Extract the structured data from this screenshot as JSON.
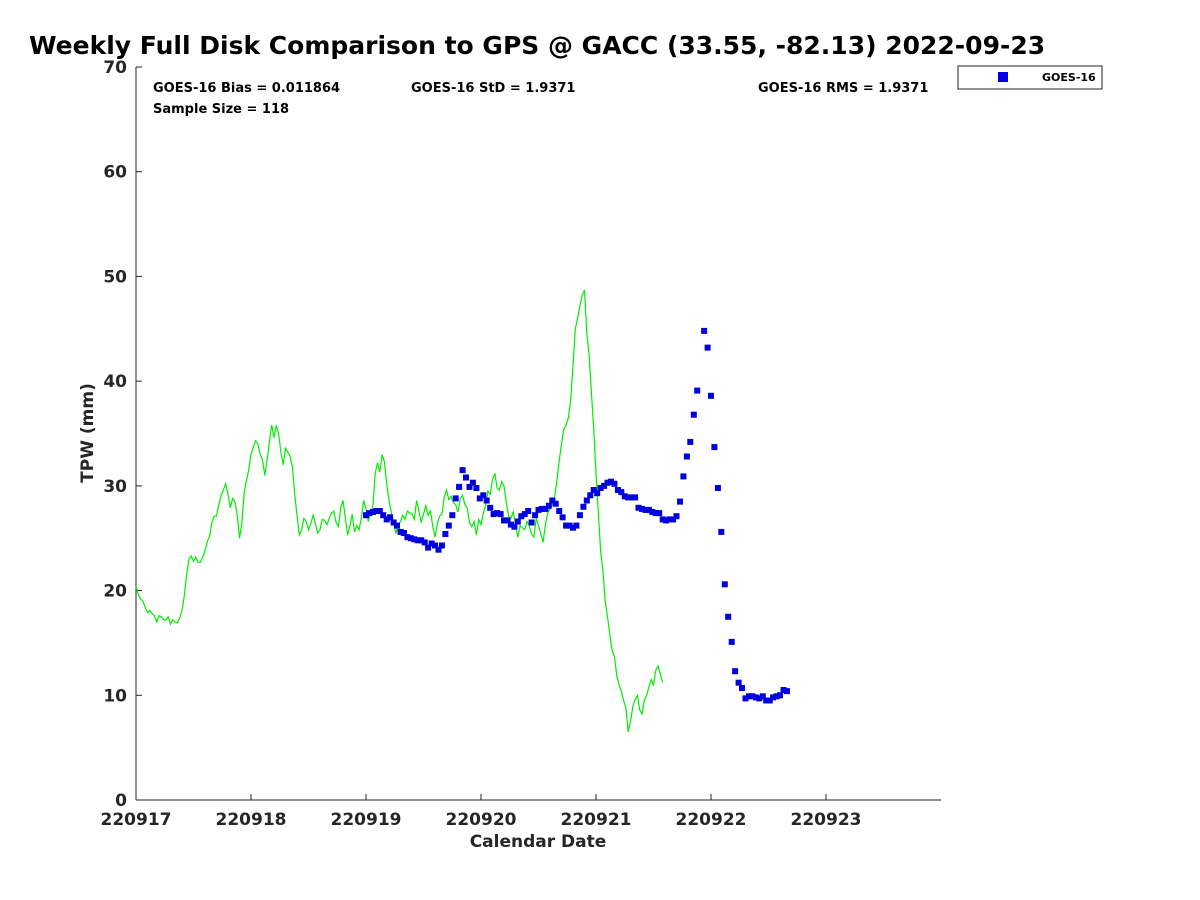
{
  "chart_data": {
    "type": "scatter",
    "title": "Weekly Full Disk Comparison to GPS @ GACC (33.55, -82.13) 2022-09-23",
    "xlabel": "Calendar Date",
    "ylabel": "TPW (mm)",
    "xlim": [
      220917.0,
      220924.0
    ],
    "ylim": [
      0,
      70
    ],
    "y_ticks": [
      "0",
      "10",
      "20",
      "30",
      "40",
      "50",
      "60",
      "70"
    ],
    "x_ticks": [
      {
        "value": 220917,
        "label": "220917"
      },
      {
        "value": 220918,
        "label": "220918"
      },
      {
        "value": 220919,
        "label": "220919"
      },
      {
        "value": 220920,
        "label": "220920"
      },
      {
        "value": 220921,
        "label": "220921"
      },
      {
        "value": 220922,
        "label": "220922"
      },
      {
        "value": 220923,
        "label": "220923"
      }
    ],
    "grid": false,
    "legend_position": "top-right",
    "stats": {
      "bias": "GOES-16 Bias = 0.011864",
      "std": "GOES-16 StD = 1.9371",
      "rms": "GOES-16 RMS = 1.9371",
      "sample": "Sample Size = 118"
    },
    "series": [
      {
        "name": "GOES-16",
        "style": "square-markers",
        "color": "#0000e0",
        "x_start": 220919.0,
        "x_step": 0.03,
        "values": [
          27.2,
          27.4,
          27.5,
          27.6,
          27.6,
          27.2,
          26.8,
          27.0,
          26.5,
          26.2,
          25.6,
          25.5,
          25.1,
          25.0,
          24.9,
          24.8,
          24.8,
          24.6,
          24.1,
          24.5,
          24.3,
          23.9,
          24.3,
          25.4,
          26.2,
          27.2,
          28.8,
          29.9,
          31.5,
          30.8,
          29.9,
          30.3,
          29.8,
          28.8,
          29.1,
          28.6,
          27.9,
          27.3,
          27.4,
          27.3,
          26.7,
          26.7,
          26.3,
          26.1,
          26.6,
          27.1,
          27.3,
          27.6,
          26.5,
          27.2,
          27.7,
          27.8,
          27.8,
          28.1,
          28.6,
          28.3,
          27.6,
          27.0,
          26.2,
          26.2,
          26.0,
          26.2,
          27.2,
          28.0,
          28.6,
          29.1,
          29.6,
          29.3,
          29.8,
          30.0,
          30.3,
          30.4,
          30.2,
          29.6,
          29.4,
          29.0,
          28.9,
          28.9,
          28.9,
          27.9,
          27.8,
          27.7,
          27.7,
          27.5,
          27.4,
          27.4,
          26.8,
          26.7,
          26.8,
          26.8,
          27.1,
          28.5,
          30.9,
          32.8,
          34.2,
          36.8,
          39.1,
          null,
          44.8,
          43.2,
          38.6,
          33.7,
          29.8,
          25.6,
          20.6,
          17.5,
          15.1,
          12.3,
          11.2,
          10.7,
          9.7,
          9.9,
          9.9,
          9.8,
          9.7,
          9.9,
          9.5,
          9.5,
          9.8,
          9.9,
          10.0,
          10.5,
          10.4
        ]
      },
      {
        "name": "GPS",
        "style": "line",
        "color": "#00ee00",
        "x_start": 220917.0,
        "x_step": 0.02,
        "values": [
          20.4,
          19.6,
          19.2,
          19.0,
          18.4,
          17.9,
          18.1,
          17.8,
          17.6,
          17.0,
          17.6,
          17.5,
          17.2,
          17.2,
          17.5,
          16.8,
          17.2,
          17.0,
          16.9,
          17.4,
          18.1,
          19.5,
          21.5,
          23.0,
          23.3,
          22.8,
          23.2,
          22.7,
          22.7,
          23.2,
          23.8,
          24.7,
          25.2,
          26.5,
          27.1,
          27.1,
          28.2,
          29.1,
          29.6,
          30.2,
          29.2,
          27.9,
          28.8,
          28.5,
          27.2,
          25.0,
          26.4,
          29.3,
          30.5,
          31.5,
          33.0,
          33.7,
          34.3,
          34.0,
          33.0,
          32.5,
          31.0,
          32.5,
          34.2,
          35.8,
          34.6,
          35.8,
          35.0,
          33.2,
          32.0,
          33.6,
          33.2,
          32.8,
          31.8,
          29.2,
          27.2,
          25.3,
          25.8,
          26.9,
          26.6,
          25.8,
          26.4,
          27.2,
          26.4,
          25.5,
          25.8,
          26.8,
          26.7,
          26.3,
          26.9,
          27.4,
          27.6,
          26.5,
          26.1,
          27.9,
          28.6,
          27.0,
          25.3,
          26.2,
          27.3,
          25.6,
          26.2,
          25.8,
          27.0,
          28.6,
          27.8,
          26.6,
          27.4,
          28.1,
          31.2,
          32.2,
          31.3,
          33.0,
          32.3,
          30.2,
          28.6,
          27.5,
          26.4,
          25.5,
          26.2,
          26.6,
          27.2,
          26.8,
          27.6,
          27.4,
          27.3,
          26.8,
          28.6,
          27.6,
          26.5,
          27.3,
          28.1,
          27.2,
          27.6,
          26.2,
          25.1,
          26.4,
          27.1,
          27.3,
          28.9,
          29.6,
          28.7,
          29.0,
          28.4,
          28.2,
          27.5,
          28.8,
          29.1,
          28.2,
          27.9,
          26.5,
          26.1,
          26.6,
          25.3,
          26.8,
          26.3,
          27.4,
          28.1,
          29.5,
          29.2,
          30.6,
          31.2,
          29.8,
          29.6,
          30.4,
          30.0,
          28.4,
          27.1,
          26.9,
          27.5,
          26.3,
          25.1,
          26.2,
          26.0,
          25.8,
          26.6,
          26.2,
          25.4,
          25.1,
          26.9,
          26.2,
          25.4,
          24.6,
          26.3,
          27.4,
          27.8,
          28.2,
          28.9,
          30.5,
          32.4,
          34.0,
          35.4,
          35.8,
          36.5,
          38.2,
          41.5,
          45.0,
          46.0,
          47.2,
          48.2,
          48.7,
          44.6,
          42.5,
          38.9,
          35.5,
          31.2,
          27.5,
          23.8,
          21.9,
          19.0,
          17.5,
          15.8,
          14.3,
          13.7,
          11.9,
          11.0,
          10.4,
          9.5,
          8.8,
          6.5,
          7.5,
          8.9,
          9.6,
          10.0,
          8.6,
          8.2,
          9.5,
          10.0,
          10.8,
          11.5,
          11.0,
          12.4,
          12.8,
          12.0,
          11.2
        ]
      }
    ]
  }
}
